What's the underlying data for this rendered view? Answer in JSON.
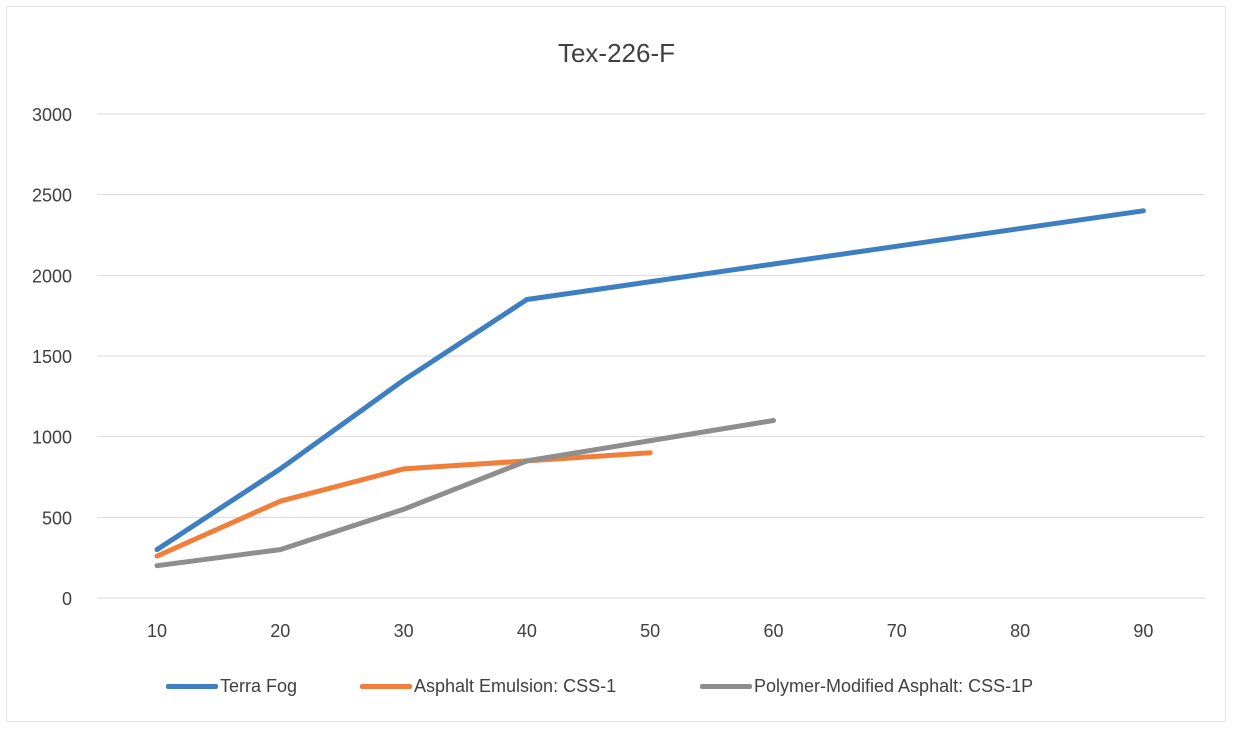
{
  "chart_data": {
    "type": "line",
    "title": "Tex-226-F",
    "xlabel": "",
    "ylabel": "",
    "x": [
      10,
      20,
      30,
      40,
      50,
      60,
      70,
      80,
      90
    ],
    "ylim": [
      0,
      3000
    ],
    "yticks": [
      0,
      500,
      1000,
      1500,
      2000,
      2500,
      3000
    ],
    "grid": true,
    "legend_position": "bottom",
    "series": [
      {
        "name": "Terra Fog",
        "color": "#3d7fc1",
        "points": [
          [
            10,
            300
          ],
          [
            20,
            800
          ],
          [
            30,
            1350
          ],
          [
            40,
            1850
          ],
          [
            90,
            2400
          ]
        ]
      },
      {
        "name": "Asphalt Emulsion: CSS-1",
        "color": "#f07f3c",
        "points": [
          [
            10,
            260
          ],
          [
            20,
            600
          ],
          [
            30,
            800
          ],
          [
            40,
            850
          ],
          [
            50,
            900
          ]
        ]
      },
      {
        "name": "Polymer-Modified Asphalt: CSS-1P",
        "color": "#8e8e8e",
        "points": [
          [
            10,
            200
          ],
          [
            20,
            300
          ],
          [
            30,
            550
          ],
          [
            40,
            850
          ],
          [
            60,
            1100
          ]
        ]
      }
    ]
  }
}
